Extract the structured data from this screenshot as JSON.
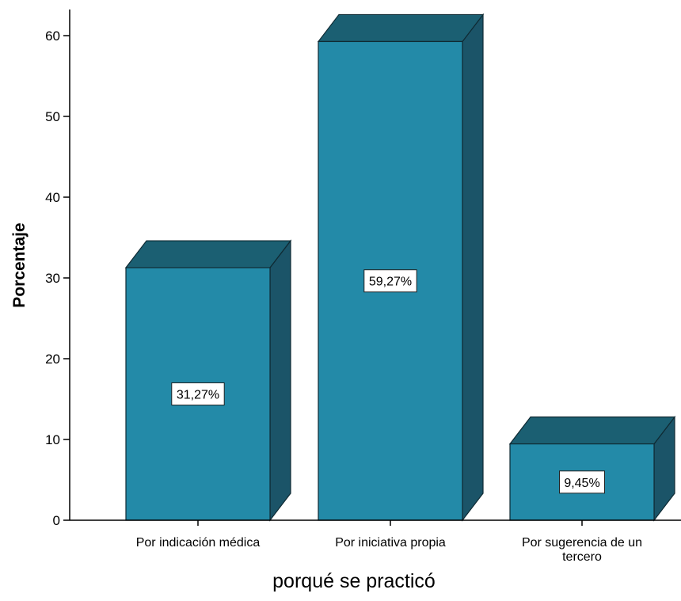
{
  "chart_data": {
    "type": "bar",
    "title": "",
    "xlabel": "porqué se practicó",
    "ylabel": "Porcentaje",
    "categories": [
      [
        "Por indicación médica"
      ],
      [
        "Por iniciativa propia"
      ],
      [
        "Por sugerencia de un",
        "tercero"
      ]
    ],
    "values": [
      31.27,
      59.27,
      9.45
    ],
    "data_labels": [
      "31,27%",
      "59,27%",
      "9,45%"
    ],
    "ylim": [
      0,
      60
    ],
    "yticks": [
      0,
      10,
      20,
      30,
      40,
      50,
      60
    ],
    "grid": false,
    "legend": "none",
    "style": "3d-bars"
  },
  "colors": {
    "bar_front": "#238aa8",
    "bar_top": "#1b5f72",
    "bar_side": "#1b5468",
    "outline": "#0f2a33",
    "axis": "#000000",
    "text": "#000000",
    "label_box": "#ffffff"
  }
}
